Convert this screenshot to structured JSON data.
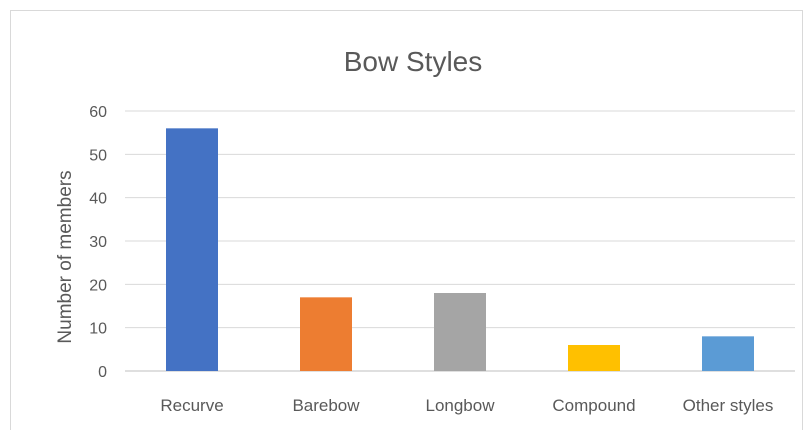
{
  "chart_data": {
    "type": "bar",
    "title": "Bow Styles",
    "xlabel": "",
    "ylabel": "Number of members",
    "categories": [
      "Recurve",
      "Barebow",
      "Longbow",
      "Compound",
      "Other styles"
    ],
    "values": [
      56,
      17,
      18,
      6,
      8
    ],
    "colors": [
      "#4472c4",
      "#ed7d31",
      "#a5a5a5",
      "#ffc000",
      "#5b9bd5"
    ],
    "ylim": [
      0,
      60
    ],
    "yticks": [
      0,
      10,
      20,
      30,
      40,
      50,
      60
    ],
    "grid": true,
    "legend": "none"
  }
}
